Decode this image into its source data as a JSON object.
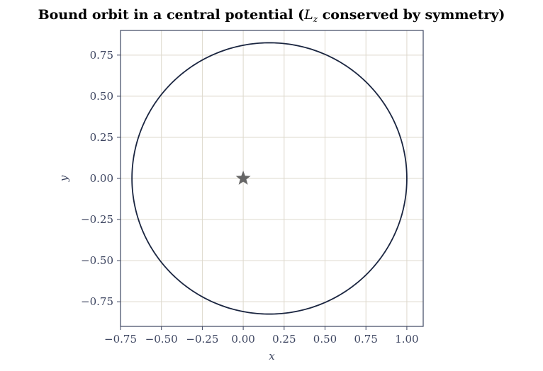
{
  "chart_data": {
    "type": "scatter",
    "title_parts": {
      "before": "Bound orbit in a central potential (",
      "symbol": "L",
      "subscript": "z",
      "after": " conserved by symmetry)"
    },
    "xlabel": "x",
    "ylabel": "y",
    "xlim": [
      -0.75,
      1.1
    ],
    "ylim": [
      -0.9,
      0.9
    ],
    "xticks": [
      -0.75,
      -0.5,
      -0.25,
      0.0,
      0.25,
      0.5,
      0.75,
      1.0
    ],
    "xtick_labels": [
      "−0.75",
      "−0.50",
      "−0.25",
      "0.00",
      "0.25",
      "0.50",
      "0.75",
      "1.00"
    ],
    "yticks": [
      0.75,
      0.5,
      0.25,
      0.0,
      -0.25,
      -0.5,
      -0.75
    ],
    "ytick_labels": [
      "0.75",
      "0.50",
      "0.25",
      "0.00",
      "−0.25",
      "−0.50",
      "−0.75"
    ],
    "grid": true,
    "orbit": {
      "description": "closed elliptical orbit with focus at origin",
      "perihelion_x": -0.68,
      "aphelion_x": 1.0,
      "center_x": 0.16,
      "semi_major": 0.84,
      "semi_minor": 0.825,
      "color": "#1a2540"
    },
    "central_body": {
      "x": 0.0,
      "y": 0.0,
      "marker": "star",
      "color": "#666666"
    }
  },
  "colors": {
    "axes_frame": "#3d4560",
    "grid": "#ddd8cc",
    "tick_text": "#3d4560"
  }
}
